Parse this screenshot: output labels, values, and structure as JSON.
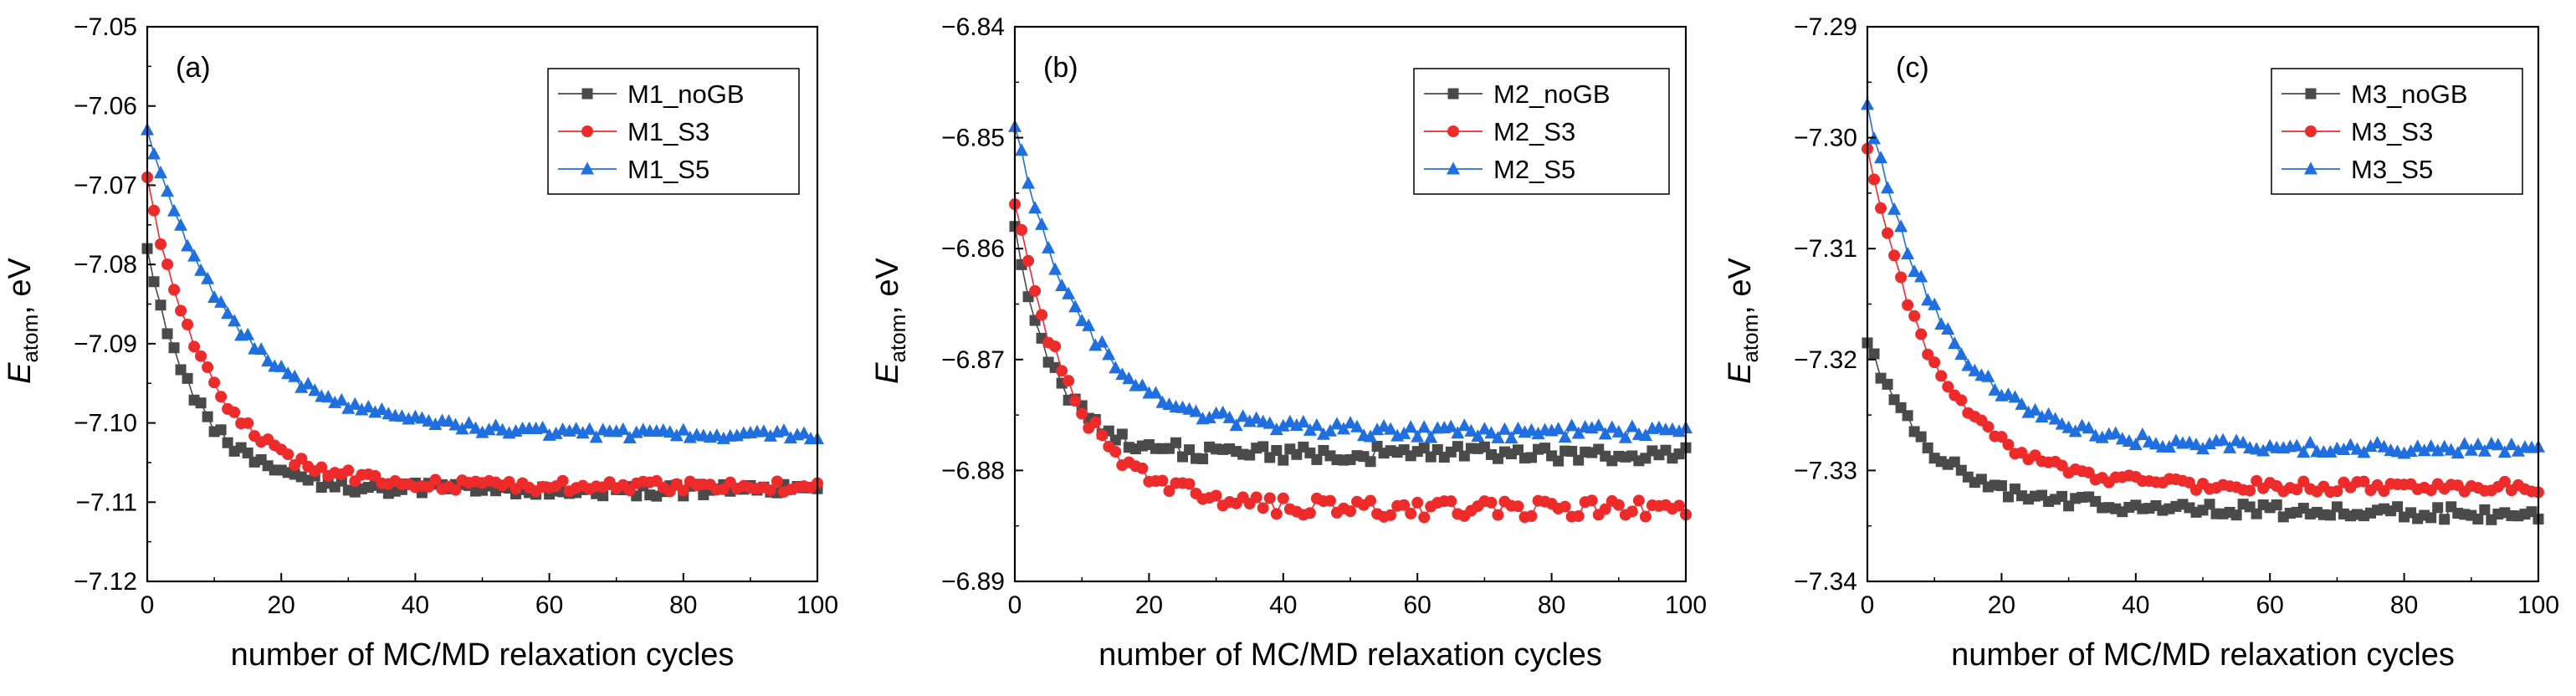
{
  "colors": {
    "noGB": "#4a4a4a",
    "S3": "#ee2a2a",
    "S5": "#1f6fe0"
  },
  "chart_data": [
    {
      "type": "line",
      "panel_label": "(a)",
      "xlabel": "number of MC/MD relaxation cycles",
      "ylabel_main": "E",
      "ylabel_sub": "atom",
      "ylabel_unit": ", eV",
      "xlim": [
        0,
        100
      ],
      "ylim": [
        -7.12,
        -7.05
      ],
      "xticks": [
        0,
        20,
        40,
        60,
        80,
        100
      ],
      "xtick_labels": [
        "0",
        "20",
        "40",
        "60",
        "80",
        "100"
      ],
      "yticks": [
        -7.12,
        -7.11,
        -7.1,
        -7.09,
        -7.08,
        -7.07,
        -7.06,
        -7.05
      ],
      "ytick_labels": [
        "-7.12",
        "-7.11",
        "-7.10",
        "-7.09",
        "-7.08",
        "-7.07",
        "-7.06",
        "-7.05"
      ],
      "series": [
        {
          "name": "M1_noGB",
          "marker": "square",
          "color_key": "noGB",
          "start": -7.078,
          "plateau": -7.1085,
          "tau": 7.5,
          "drift": 0.0,
          "jitter": 0.0008
        },
        {
          "name": "M1_S3",
          "marker": "circle",
          "color_key": "S3",
          "start": -7.069,
          "plateau": -7.108,
          "tau": 9.0,
          "drift": 0.0,
          "jitter": 0.0007
        },
        {
          "name": "M1_S5",
          "marker": "triangle",
          "color_key": "S5",
          "start": -7.063,
          "plateau": -7.1015,
          "tau": 13.0,
          "drift": 0.0,
          "jitter": 0.0006
        }
      ]
    },
    {
      "type": "line",
      "panel_label": "(b)",
      "xlabel": "number of MC/MD relaxation cycles",
      "ylabel_main": "E",
      "ylabel_sub": "atom",
      "ylabel_unit": ", eV",
      "xlim": [
        0,
        100
      ],
      "ylim": [
        -6.89,
        -6.84
      ],
      "xticks": [
        0,
        20,
        40,
        60,
        80,
        100
      ],
      "xtick_labels": [
        "0",
        "20",
        "40",
        "60",
        "80",
        "100"
      ],
      "yticks": [
        -6.89,
        -6.88,
        -6.87,
        -6.86,
        -6.85,
        -6.84
      ],
      "ytick_labels": [
        "-6.89",
        "-6.88",
        "-6.87",
        "-6.86",
        "-6.85",
        "-6.84"
      ],
      "series": [
        {
          "name": "M2_noGB",
          "marker": "square",
          "color_key": "noGB",
          "start": -6.858,
          "plateau": -6.8785,
          "tau": 6.0,
          "drift": 0.0,
          "jitter": 0.0007
        },
        {
          "name": "M2_S3",
          "marker": "circle",
          "color_key": "S3",
          "start": -6.856,
          "plateau": -6.8835,
          "tau": 9.0,
          "drift": 0.0,
          "jitter": 0.0008
        },
        {
          "name": "M2_S5",
          "marker": "triangle",
          "color_key": "S5",
          "start": -6.849,
          "plateau": -6.8765,
          "tau": 10.0,
          "drift": 0.0,
          "jitter": 0.0006
        }
      ]
    },
    {
      "type": "line",
      "panel_label": "(c)",
      "xlabel": "number of MC/MD relaxation cycles",
      "ylabel_main": "E",
      "ylabel_sub": "atom",
      "ylabel_unit": ", eV",
      "xlim": [
        0,
        100
      ],
      "ylim": [
        -7.34,
        -7.29
      ],
      "xticks": [
        0,
        20,
        40,
        60,
        80,
        100
      ],
      "xtick_labels": [
        "0",
        "20",
        "40",
        "60",
        "80",
        "100"
      ],
      "yticks": [
        -7.34,
        -7.33,
        -7.32,
        -7.31,
        -7.3,
        -7.29
      ],
      "ytick_labels": [
        "-7.34",
        "-7.33",
        "-7.32",
        "-7.31",
        "-7.30",
        "-7.29"
      ],
      "series": [
        {
          "name": "M3_noGB",
          "marker": "square",
          "color_key": "noGB",
          "start": -7.3185,
          "plateau": -7.333,
          "tau": 9.0,
          "drift": -1e-05,
          "jitter": 0.0006
        },
        {
          "name": "M3_S3",
          "marker": "circle",
          "color_key": "S3",
          "start": -7.301,
          "plateau": -7.3315,
          "tau": 10.0,
          "drift": 0.0,
          "jitter": 0.0005
        },
        {
          "name": "M3_S5",
          "marker": "triangle",
          "color_key": "S5",
          "start": -7.297,
          "plateau": -7.328,
          "tau": 11.0,
          "drift": 0.0,
          "jitter": 0.0005
        }
      ]
    }
  ]
}
